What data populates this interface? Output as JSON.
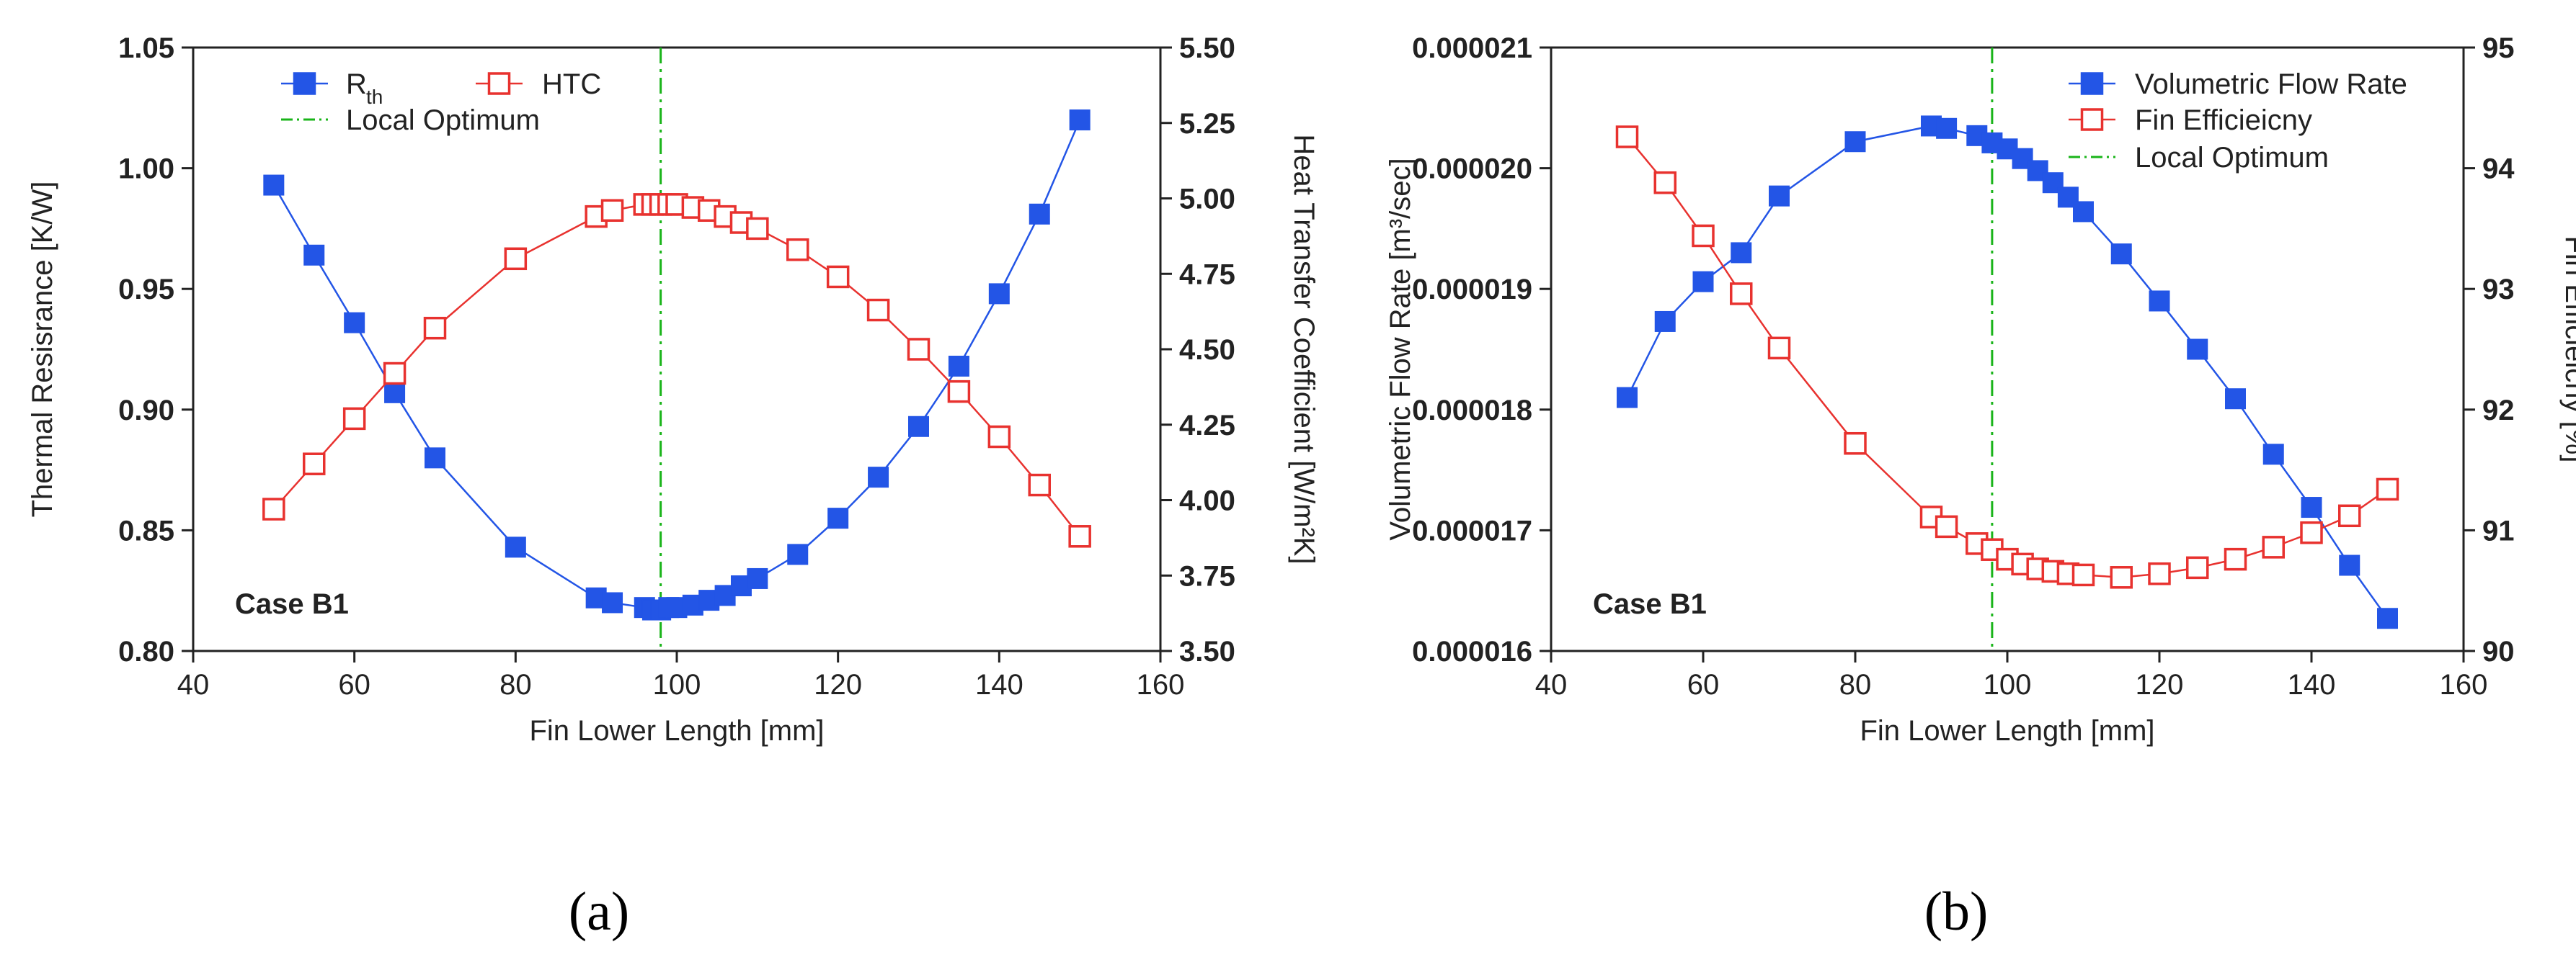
{
  "chart_data": [
    {
      "type": "line",
      "panel_label": "(a)",
      "case_label": "Case B1",
      "xlabel": "Fin Lower Length [mm]",
      "ylabel_left": "Thermal Resisrance [K/W]",
      "ylabel_right": "Heat Transfer Coefficient [W/m²K]",
      "xlim": [
        40,
        160
      ],
      "ylim_left": [
        0.8,
        1.05
      ],
      "ylim_right": [
        3.5,
        5.5
      ],
      "x_ticks": [
        "40",
        "60",
        "80",
        "100",
        "120",
        "140",
        "160"
      ],
      "y_ticks_left": [
        "0.80",
        "0.85",
        "0.90",
        "0.95",
        "1.00",
        "1.05"
      ],
      "y_ticks_right": [
        "3.50",
        "3.75",
        "4.00",
        "4.25",
        "4.50",
        "4.75",
        "5.00",
        "5.25",
        "5.50"
      ],
      "legend": [
        {
          "label": "R",
          "subscript": "th",
          "marker": "square-filled",
          "color": "#2355e6"
        },
        {
          "label": "HTC",
          "marker": "square-open",
          "color": "#e8322f"
        },
        {
          "label": "Local Optimum",
          "marker": "dash-dot",
          "color": "#19b419"
        }
      ],
      "local_optimum_x": 98,
      "series": [
        {
          "axis": "left",
          "x": [
            50,
            55,
            60,
            65,
            70,
            80,
            90,
            92,
            96,
            97,
            98,
            99,
            100,
            102,
            104,
            106,
            108,
            110,
            115,
            120,
            125,
            130,
            135,
            140,
            145,
            150
          ],
          "values": [
            0.993,
            0.964,
            0.936,
            0.907,
            0.88,
            0.843,
            0.822,
            0.82,
            0.818,
            0.817,
            0.817,
            0.818,
            0.818,
            0.819,
            0.821,
            0.823,
            0.827,
            0.83,
            0.84,
            0.855,
            0.872,
            0.893,
            0.918,
            0.948,
            0.981,
            1.02
          ]
        },
        {
          "axis": "right",
          "x": [
            50,
            55,
            60,
            65,
            70,
            80,
            90,
            92,
            96,
            97,
            98,
            99,
            100,
            102,
            104,
            106,
            108,
            110,
            115,
            120,
            125,
            130,
            135,
            140,
            145,
            150
          ],
          "values": [
            3.97,
            4.12,
            4.27,
            4.42,
            4.57,
            4.8,
            4.94,
            4.96,
            4.98,
            4.98,
            4.98,
            4.98,
            4.98,
            4.97,
            4.96,
            4.94,
            4.92,
            4.9,
            4.83,
            4.74,
            4.63,
            4.5,
            4.36,
            4.21,
            4.05,
            3.88
          ]
        }
      ]
    },
    {
      "type": "line",
      "panel_label": "(b)",
      "case_label": "Case B1",
      "xlabel": "Fin Lower Length [mm]",
      "ylabel_left": "Volumetric Flow Rate [m³/sec]",
      "ylabel_right": "Fin Efficieicny [%]",
      "xlim": [
        40,
        160
      ],
      "ylim_left": [
        1.6e-05,
        2.1e-05
      ],
      "ylim_right": [
        90,
        95
      ],
      "x_ticks": [
        "40",
        "60",
        "80",
        "100",
        "120",
        "140",
        "160"
      ],
      "y_ticks_left": [
        "0.000016",
        "0.000017",
        "0.000018",
        "0.000019",
        "0.000020",
        "0.000021"
      ],
      "y_ticks_right": [
        "90",
        "91",
        "92",
        "93",
        "94",
        "95"
      ],
      "legend": [
        {
          "label": "Volumetric Flow Rate",
          "marker": "square-filled",
          "color": "#2355e6"
        },
        {
          "label": "Fin Efficieicny",
          "marker": "square-open",
          "color": "#e8322f"
        },
        {
          "label": "Local Optimum",
          "marker": "dash-dot",
          "color": "#19b419"
        }
      ],
      "local_optimum_x": 98,
      "series": [
        {
          "axis": "left",
          "x": [
            50,
            55,
            60,
            65,
            70,
            80,
            90,
            92,
            96,
            98,
            100,
            102,
            104,
            106,
            108,
            110,
            115,
            120,
            125,
            130,
            135,
            140,
            145,
            150
          ],
          "values": [
            1.81e-05,
            1.873e-05,
            1.906e-05,
            1.93e-05,
            1.977e-05,
            2.022e-05,
            2.035e-05,
            2.033e-05,
            2.027e-05,
            2.021e-05,
            2.016e-05,
            2.008e-05,
            1.998e-05,
            1.988e-05,
            1.976e-05,
            1.964e-05,
            1.929e-05,
            1.89e-05,
            1.85e-05,
            1.809e-05,
            1.763e-05,
            1.719e-05,
            1.671e-05,
            1.627e-05
          ]
        },
        {
          "axis": "right",
          "x": [
            50,
            55,
            60,
            65,
            70,
            80,
            90,
            92,
            96,
            98,
            100,
            102,
            104,
            106,
            108,
            110,
            115,
            120,
            125,
            130,
            135,
            140,
            145,
            150
          ],
          "values": [
            94.26,
            93.88,
            93.44,
            92.96,
            92.51,
            91.72,
            91.11,
            91.03,
            90.89,
            90.84,
            90.76,
            90.72,
            90.68,
            90.66,
            90.64,
            90.63,
            90.61,
            90.64,
            90.69,
            90.76,
            90.86,
            90.98,
            91.12,
            91.34
          ]
        }
      ]
    }
  ]
}
